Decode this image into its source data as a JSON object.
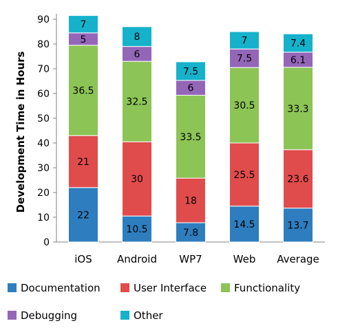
{
  "chart_data": {
    "type": "bar",
    "stacked": true,
    "categories": [
      "iOS",
      "Android",
      "WP7",
      "Web",
      "Average"
    ],
    "series": [
      {
        "name": "Documentation",
        "color": "#2e7ebf",
        "values": [
          22,
          10.5,
          7.8,
          14.5,
          13.7
        ]
      },
      {
        "name": "User Interface",
        "color": "#e04c4c",
        "values": [
          21,
          30,
          18,
          25.5,
          23.6
        ]
      },
      {
        "name": "Functionality",
        "color": "#8dc456",
        "values": [
          36.5,
          32.5,
          33.5,
          30.5,
          33.3
        ]
      },
      {
        "name": "Debugging",
        "color": "#9466b8",
        "values": [
          5,
          6,
          6,
          7.5,
          6.1
        ]
      },
      {
        "name": "Other",
        "color": "#16b2cc",
        "values": [
          7,
          8,
          7.5,
          7,
          7.4
        ]
      }
    ],
    "title": "",
    "xlabel": "",
    "ylabel": "Development Time in Hours",
    "ylim": [
      0,
      90
    ],
    "yticks": [
      0,
      10,
      20,
      30,
      40,
      50,
      60,
      70,
      80,
      90
    ],
    "grid": false,
    "legend_position": "bottom"
  }
}
